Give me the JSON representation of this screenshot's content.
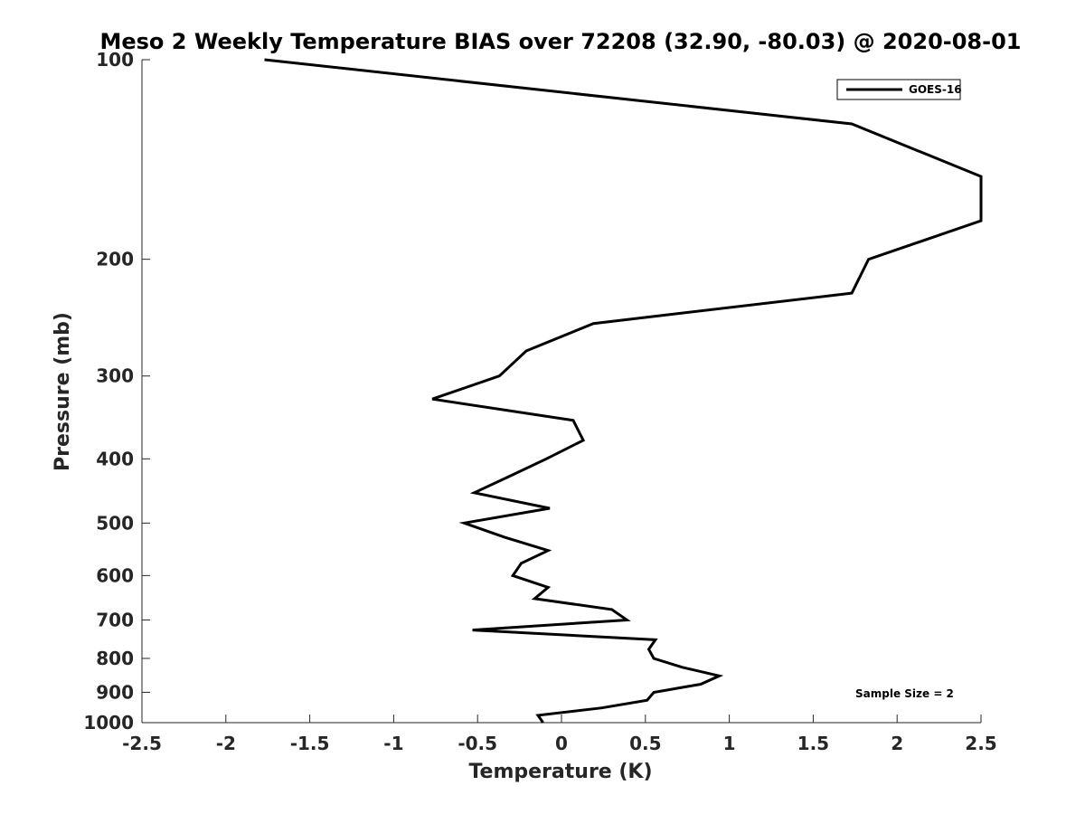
{
  "chart_data": {
    "type": "line",
    "title": "Meso 2 Weekly Temperature BIAS over 72208 (32.90, -80.03) @ 2020-08-01",
    "xlabel": "Temperature (K)",
    "ylabel": "Pressure (mb)",
    "xlim": [
      -2.5,
      2.5
    ],
    "ylim": [
      100,
      1000
    ],
    "y_scale": "log",
    "y_reversed": true,
    "grid": false,
    "legend_position": "top-right",
    "x_ticks": [
      "-2.5",
      "-2",
      "-1.5",
      "-1",
      "-0.5",
      "0",
      "0.5",
      "1",
      "1.5",
      "2",
      "2.5"
    ],
    "y_ticks": [
      "100",
      "200",
      "300",
      "400",
      "500",
      "600",
      "700",
      "800",
      "900",
      "1000"
    ],
    "annotation": "Sample Size = 2",
    "series": [
      {
        "name": "GOES-16",
        "color": "#000000",
        "points": [
          {
            "p": 100,
            "t": -1.77
          },
          {
            "p": 125,
            "t": 1.73
          },
          {
            "p": 150,
            "t": 2.5
          },
          {
            "p": 175,
            "t": 2.5
          },
          {
            "p": 200,
            "t": 1.83
          },
          {
            "p": 225,
            "t": 1.73
          },
          {
            "p": 250,
            "t": 0.19
          },
          {
            "p": 275,
            "t": -0.21
          },
          {
            "p": 300,
            "t": -0.37
          },
          {
            "p": 325,
            "t": -0.77
          },
          {
            "p": 350,
            "t": 0.07
          },
          {
            "p": 375,
            "t": 0.13
          },
          {
            "p": 400,
            "t": -0.09
          },
          {
            "p": 425,
            "t": -0.31
          },
          {
            "p": 450,
            "t": -0.52
          },
          {
            "p": 475,
            "t": -0.07
          },
          {
            "p": 500,
            "t": -0.58
          },
          {
            "p": 525,
            "t": -0.34
          },
          {
            "p": 550,
            "t": -0.08
          },
          {
            "p": 575,
            "t": -0.24
          },
          {
            "p": 600,
            "t": -0.29
          },
          {
            "p": 625,
            "t": -0.08
          },
          {
            "p": 650,
            "t": -0.16
          },
          {
            "p": 675,
            "t": 0.3
          },
          {
            "p": 700,
            "t": 0.39
          },
          {
            "p": 725,
            "t": -0.53
          },
          {
            "p": 750,
            "t": 0.56
          },
          {
            "p": 775,
            "t": 0.52
          },
          {
            "p": 800,
            "t": 0.55
          },
          {
            "p": 825,
            "t": 0.72
          },
          {
            "p": 850,
            "t": 0.94
          },
          {
            "p": 875,
            "t": 0.83
          },
          {
            "p": 900,
            "t": 0.55
          },
          {
            "p": 925,
            "t": 0.51
          },
          {
            "p": 950,
            "t": 0.24
          },
          {
            "p": 975,
            "t": -0.14
          },
          {
            "p": 1000,
            "t": -0.11
          }
        ]
      }
    ]
  }
}
